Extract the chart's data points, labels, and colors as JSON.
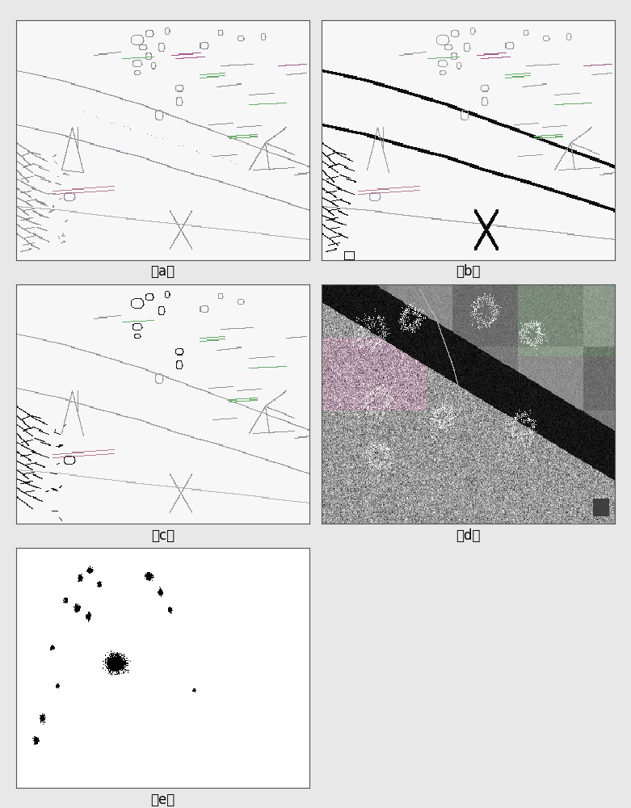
{
  "figure_width": 7.81,
  "figure_height": 10.0,
  "dpi": 100,
  "bg_color": "#e8e8e8",
  "subplot_labels": [
    "（a）",
    "（b）",
    "（c）",
    "（d）",
    "（e）"
  ],
  "label_fontsize": 12,
  "border_color": "#555555",
  "border_linewidth": 0.8,
  "img_bg": 0.97,
  "line_gray_a": 0.6,
  "line_dark_b": 0.05,
  "line_pink": [
    0.72,
    0.5,
    0.58
  ],
  "line_green": [
    0.42,
    0.68,
    0.42
  ],
  "line_magenta": [
    0.65,
    0.35,
    0.55
  ]
}
